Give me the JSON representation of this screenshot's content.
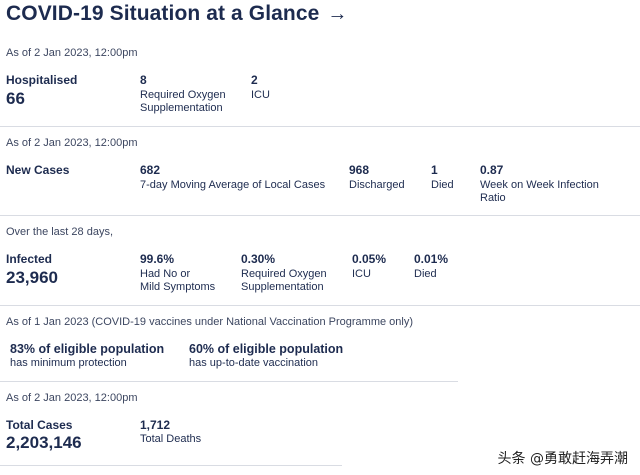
{
  "title": "COVID-19 Situation at a Glance",
  "title_arrow": "→",
  "hospital": {
    "as_of": "As of 2 Jan 2023, 12:00pm",
    "label": "Hospitalised",
    "value": "66",
    "oxygen_value": "8",
    "oxygen_label_1": "Required Oxygen",
    "oxygen_label_2": "Supplementation",
    "icu_value": "2",
    "icu_label": "ICU"
  },
  "cases": {
    "as_of": "As of 2 Jan 2023, 12:00pm",
    "label": "New Cases",
    "avg_value": "682",
    "avg_label": "7-day Moving Average of Local Cases",
    "discharged_value": "968",
    "discharged_label": "Discharged",
    "died_value": "1",
    "died_label": "Died",
    "ratio_value": "0.87",
    "ratio_label_1": "Week on Week Infection",
    "ratio_label_2": "Ratio"
  },
  "infected": {
    "as_of": "Over the last 28 days,",
    "label": "Infected",
    "value": "23,960",
    "mild_value": "99.6%",
    "mild_label_1": "Had No or",
    "mild_label_2": "Mild Symptoms",
    "oxygen_value": "0.30%",
    "oxygen_label_1": "Required Oxygen",
    "oxygen_label_2": "Supplementation",
    "icu_value": "0.05%",
    "icu_label": "ICU",
    "died_value": "0.01%",
    "died_label": "Died"
  },
  "vaccine": {
    "as_of": "As of 1 Jan 2023 (COVID-19 vaccines under National Vaccination Programme only)",
    "min_label": "83% of eligible population",
    "min_sub": "has minimum protection",
    "uptodate_label": "60% of eligible population",
    "uptodate_sub": "has up-to-date vaccination"
  },
  "totals": {
    "as_of": "As of 2 Jan 2023, 12:00pm",
    "label": "Total Cases",
    "value": "2,203,146",
    "deaths_value": "1,712",
    "deaths_label": "Total Deaths"
  },
  "watermark": "头条 @勇敢赶海弄潮"
}
